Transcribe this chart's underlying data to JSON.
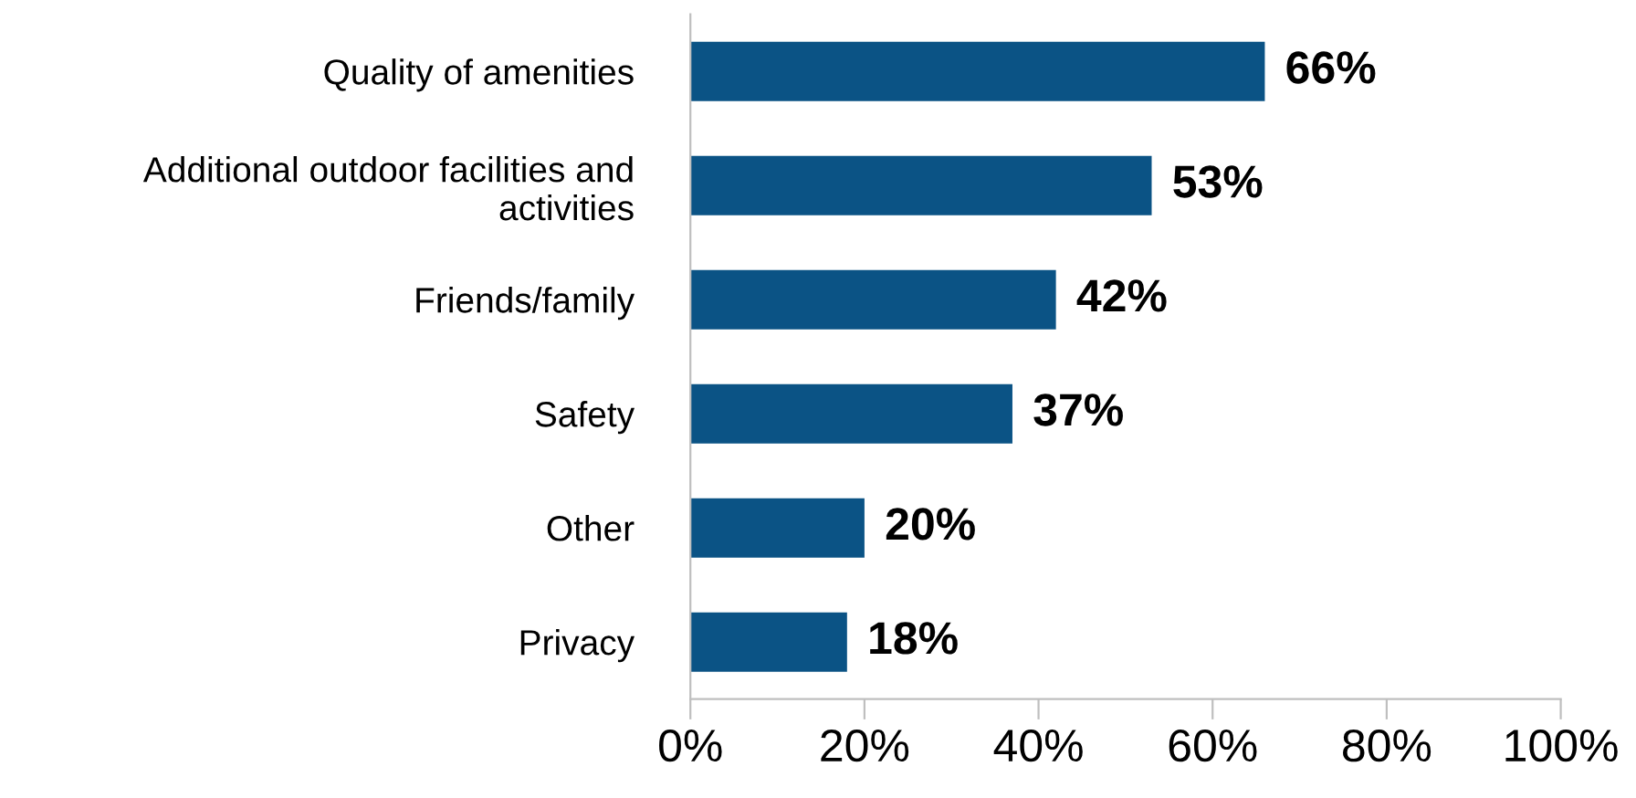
{
  "chart_data": {
    "type": "bar",
    "orientation": "horizontal",
    "categories": [
      "Quality of amenities",
      "Additional outdoor facilities and\nactivities",
      "Friends/family",
      "Safety",
      "Other",
      "Privacy"
    ],
    "values": [
      66,
      53,
      42,
      37,
      20,
      18
    ],
    "value_labels": [
      "66%",
      "53%",
      "42%",
      "37%",
      "20%",
      "18%"
    ],
    "color": "#0b5385",
    "xlim": [
      0,
      100
    ],
    "xticks": [
      {
        "value": 0,
        "label": "0%"
      },
      {
        "value": 20,
        "label": "20%"
      },
      {
        "value": 40,
        "label": "40%"
      },
      {
        "value": 60,
        "label": "60%"
      },
      {
        "value": 80,
        "label": "80%"
      },
      {
        "value": 100,
        "label": "100%"
      }
    ],
    "grid": false
  }
}
